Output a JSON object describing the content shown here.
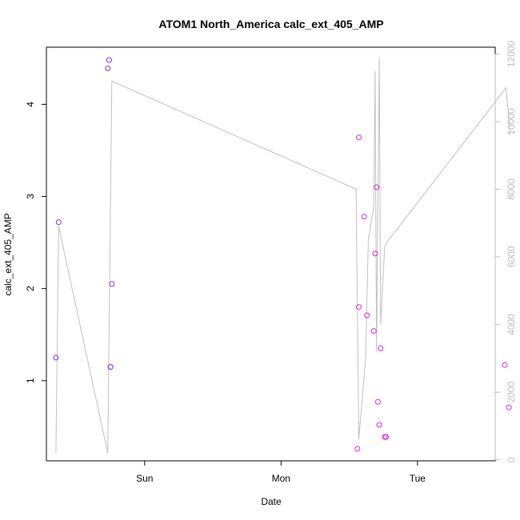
{
  "chart_data": {
    "type": "scatter",
    "title": "ATOM1 North_America calc_ext_405_AMP",
    "xlabel": "Date",
    "ylabel": "calc_ext_405_AMP",
    "xlim": [
      -0.72,
      2.57
    ],
    "ylim": [
      0.13,
      4.62
    ],
    "y2lim": [
      -30,
      12200
    ],
    "x_ticks": [
      {
        "label": "Sun",
        "value": 0
      },
      {
        "label": "Mon",
        "value": 1
      },
      {
        "label": "Tue",
        "value": 2
      }
    ],
    "y_ticks": [
      1,
      2,
      3,
      4
    ],
    "y2_ticks": [
      0,
      2000,
      4000,
      6000,
      8000,
      10000,
      12000
    ],
    "colors": {
      "points_early": "#7b2ff7",
      "points_late": "#e020e0",
      "line": "#c0c0c0",
      "right_axis": "#bdbdbd"
    },
    "series": [
      {
        "axis": "left",
        "style": "points",
        "x": [
          -0.65,
          -0.63,
          -0.27,
          -0.26,
          -0.25,
          -0.25,
          -0.24,
          1.56,
          1.57,
          1.57,
          1.61,
          1.63,
          1.68,
          1.69,
          1.7,
          1.71,
          1.72,
          1.73,
          1.76,
          1.77,
          2.64,
          2.67
        ],
        "y": [
          1.25,
          2.72,
          4.39,
          4.48,
          1.15,
          1.15,
          2.05,
          0.26,
          1.8,
          3.64,
          2.78,
          1.71,
          1.54,
          2.38,
          3.1,
          0.77,
          0.52,
          1.35,
          0.39,
          0.39,
          1.17,
          0.71
        ]
      },
      {
        "axis": "right",
        "style": "line",
        "x": [
          -0.65,
          -0.63,
          -0.27,
          -0.24,
          1.55,
          1.57,
          1.62,
          1.64,
          1.68,
          1.69,
          1.7,
          1.72,
          1.73,
          1.76,
          1.77,
          2.65,
          2.68
        ],
        "y": [
          200,
          6900,
          200,
          11200,
          8000,
          600,
          3000,
          6500,
          7500,
          11500,
          3200,
          11900,
          4000,
          6300,
          6400,
          11000,
          9600
        ]
      }
    ]
  }
}
